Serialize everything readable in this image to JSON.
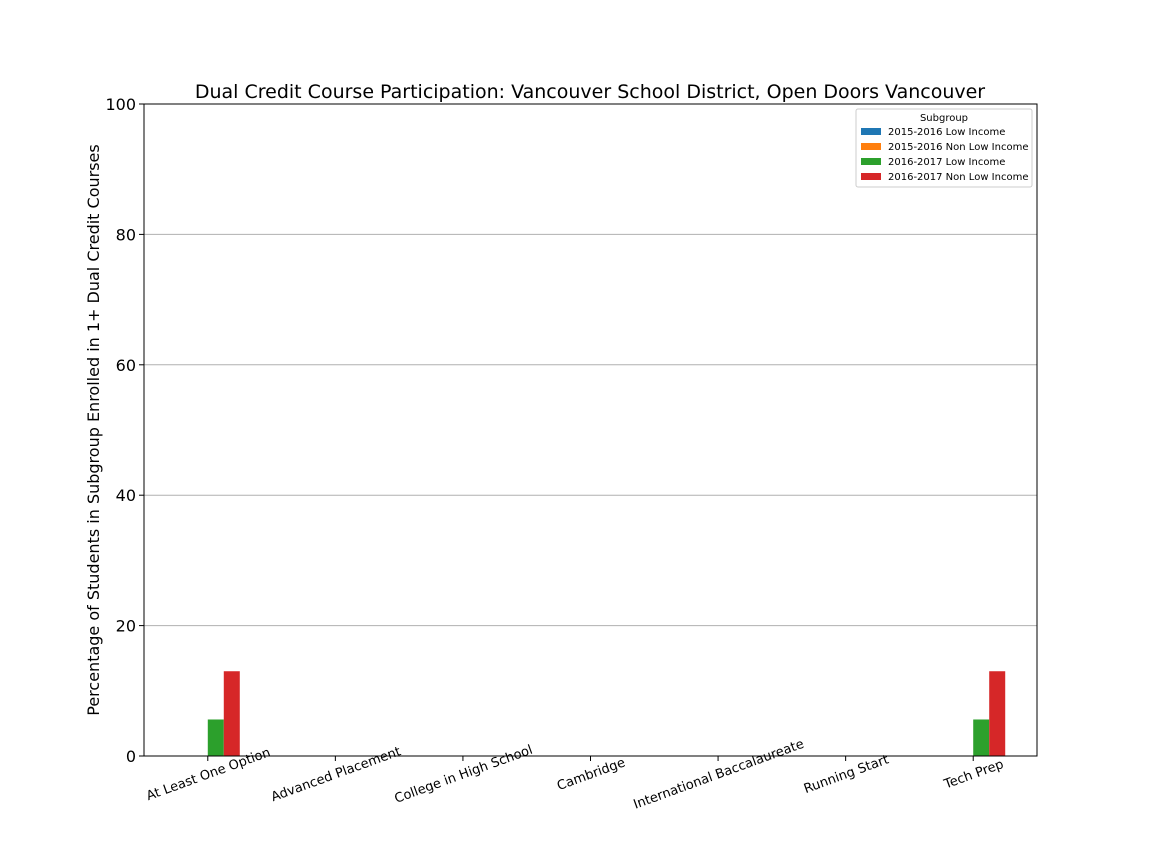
{
  "chart_data": {
    "type": "bar",
    "title": "Dual Credit Course Participation: Vancouver School District, Open Doors Vancouver",
    "ylabel": "Percentage of Students in Subgroup Enrolled in 1+ Dual Credit Courses",
    "xlabel": "",
    "ylim": [
      0,
      100
    ],
    "yticks": [
      "0",
      "20",
      "40",
      "60",
      "80",
      "100"
    ],
    "grid": true,
    "categories": [
      "At Least One Option",
      "Advanced Placement",
      "College in High School",
      "Cambridge",
      "International Baccalaureate",
      "Running Start",
      "Tech Prep"
    ],
    "legend": {
      "title": "Subgroup",
      "placement": "top-right"
    },
    "series": [
      {
        "name": "2015-2016 Low Income",
        "color": "#1f77b4",
        "values": [
          0,
          0,
          0,
          0,
          0,
          0,
          0
        ]
      },
      {
        "name": "2015-2016 Non Low Income",
        "color": "#ff7f0e",
        "values": [
          0,
          0,
          0,
          0,
          0,
          0,
          0
        ]
      },
      {
        "name": "2016-2017 Low Income",
        "color": "#2ca02c",
        "values": [
          5.6,
          0,
          0,
          0,
          0,
          0,
          5.6
        ]
      },
      {
        "name": "2016-2017 Non Low Income",
        "color": "#d62728",
        "values": [
          13,
          0,
          0,
          0,
          0,
          0,
          13
        ]
      }
    ]
  }
}
